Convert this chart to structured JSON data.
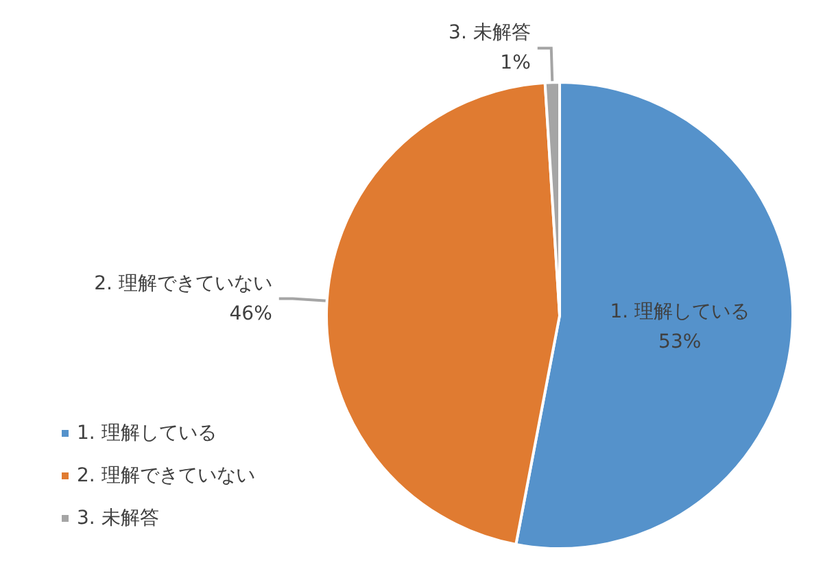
{
  "chart_data": {
    "type": "pie",
    "categories": [
      "1. 理解している",
      "2. 理解できていない",
      "3. 未解答"
    ],
    "values": [
      53,
      46,
      1
    ],
    "value_labels": [
      "53%",
      "46%",
      "1%"
    ],
    "colors": [
      "#5592cb",
      "#e07b31",
      "#a5a5a5"
    ],
    "legend": "bottom left"
  }
}
